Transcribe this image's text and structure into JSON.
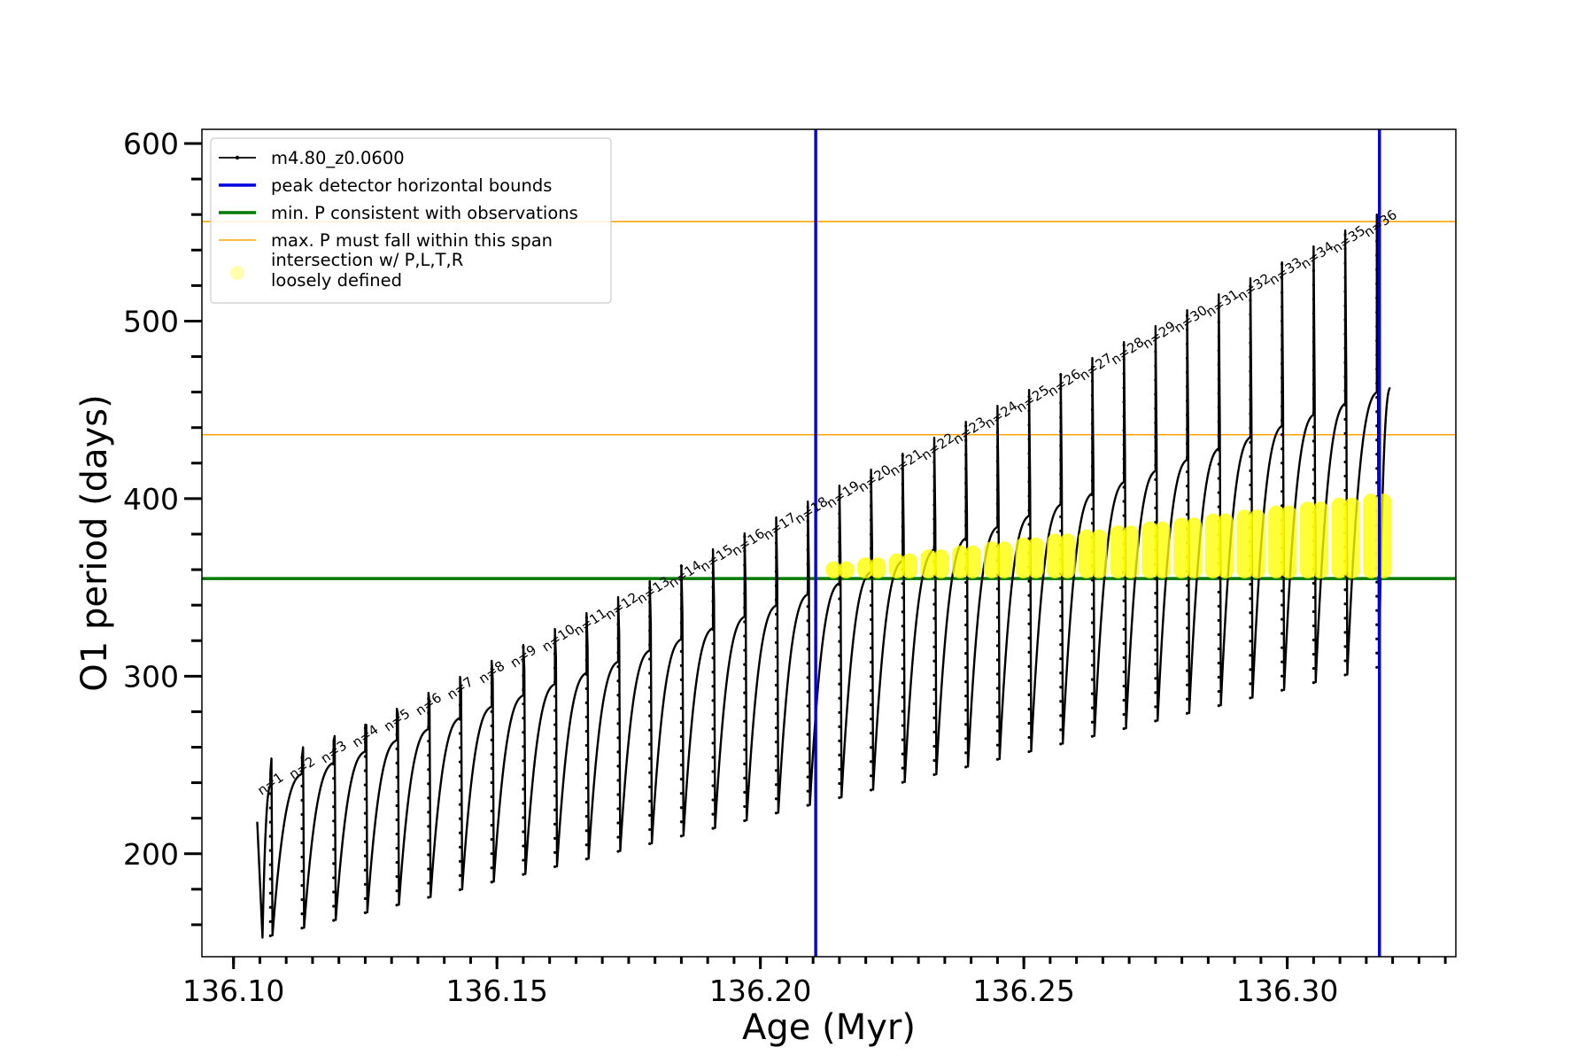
{
  "chart_data": {
    "type": "line",
    "xlabel": "Age (Myr)",
    "ylabel": "O1 period (days)",
    "xlim": [
      136.094,
      136.332
    ],
    "ylim": [
      142,
      608
    ],
    "xticks": [
      136.1,
      136.15,
      136.2,
      136.25,
      136.3
    ],
    "xtick_labels": [
      "136.10",
      "136.15",
      "136.20",
      "136.25",
      "136.30"
    ],
    "yticks": [
      200,
      300,
      400,
      500,
      600
    ],
    "ytick_labels": [
      "200",
      "300",
      "400",
      "500",
      "600"
    ],
    "grid": false,
    "legend_position": "top-left",
    "series": [
      {
        "name": "m4.80_z0.0600",
        "color": "#000000",
        "style": "line-with-small-markers",
        "pulse_count": 36,
        "x_start": 136.1045,
        "x_pulse_start": 136.107,
        "pulse_spacing": 0.006,
        "x_end": 136.3195,
        "trough_min": {
          "x": [
            136.1045,
            136.317
          ],
          "y": [
            152,
            305
          ]
        },
        "plateau_max": {
          "x": [
            136.1045,
            136.317
          ],
          "y": [
            236,
            460
          ]
        },
        "spike_top": {
          "x": [
            136.1045,
            136.317
          ],
          "y": [
            242,
            560
          ]
        },
        "initial_value": 218,
        "final_value": 463
      }
    ],
    "hlines": [
      {
        "name": "min. P consistent with observations",
        "y": 355,
        "color": "#007a00"
      },
      {
        "name": "max. P must fall within this span",
        "y": 436,
        "color": "#ffa500"
      },
      {
        "name": "max. P must fall within this span",
        "y": 556,
        "color": "#ffa500"
      }
    ],
    "vlines": [
      {
        "name": "peak detector horizontal bounds",
        "x": 136.2105,
        "color": "#0000dd"
      },
      {
        "name": "peak detector horizontal bounds",
        "x": 136.3175,
        "color": "#0000dd"
      }
    ],
    "intersection": {
      "name": "intersection w/ P,L,T,R\nloosely defined",
      "color": "#ffff00",
      "x_range": [
        136.2105,
        136.3175
      ],
      "y_range": [
        355,
        390
      ]
    },
    "peak_labels": [
      "n=1",
      "n=2",
      "n=3",
      "n=4",
      "n=5",
      "n=6",
      "n=7",
      "n=8",
      "n=9",
      "n=10",
      "n=11",
      "n=12",
      "n=13",
      "n=14",
      "n=15",
      "n=16",
      "n=17",
      "n=18",
      "n=19",
      "n=20",
      "n=21",
      "n=22",
      "n=23",
      "n=24",
      "n=25",
      "n=26",
      "n=27",
      "n=28",
      "n=29",
      "n=30",
      "n=31",
      "n=32",
      "n=33",
      "n=34",
      "n=35",
      "n=36"
    ],
    "legend": [
      {
        "label": "m4.80_z0.0600",
        "marker": "line-dot",
        "color": "#000000"
      },
      {
        "label": "peak detector horizontal bounds",
        "marker": "line",
        "color": "#0000dd"
      },
      {
        "label": "min. P consistent with observations",
        "marker": "line",
        "color": "#007a00"
      },
      {
        "label": "max. P must fall within this span",
        "marker": "thin-line",
        "color": "#ffa500"
      },
      {
        "label": "intersection w/ P,L,T,R",
        "label2": "loosely defined",
        "marker": "dot",
        "color": "#ffff99"
      }
    ]
  }
}
